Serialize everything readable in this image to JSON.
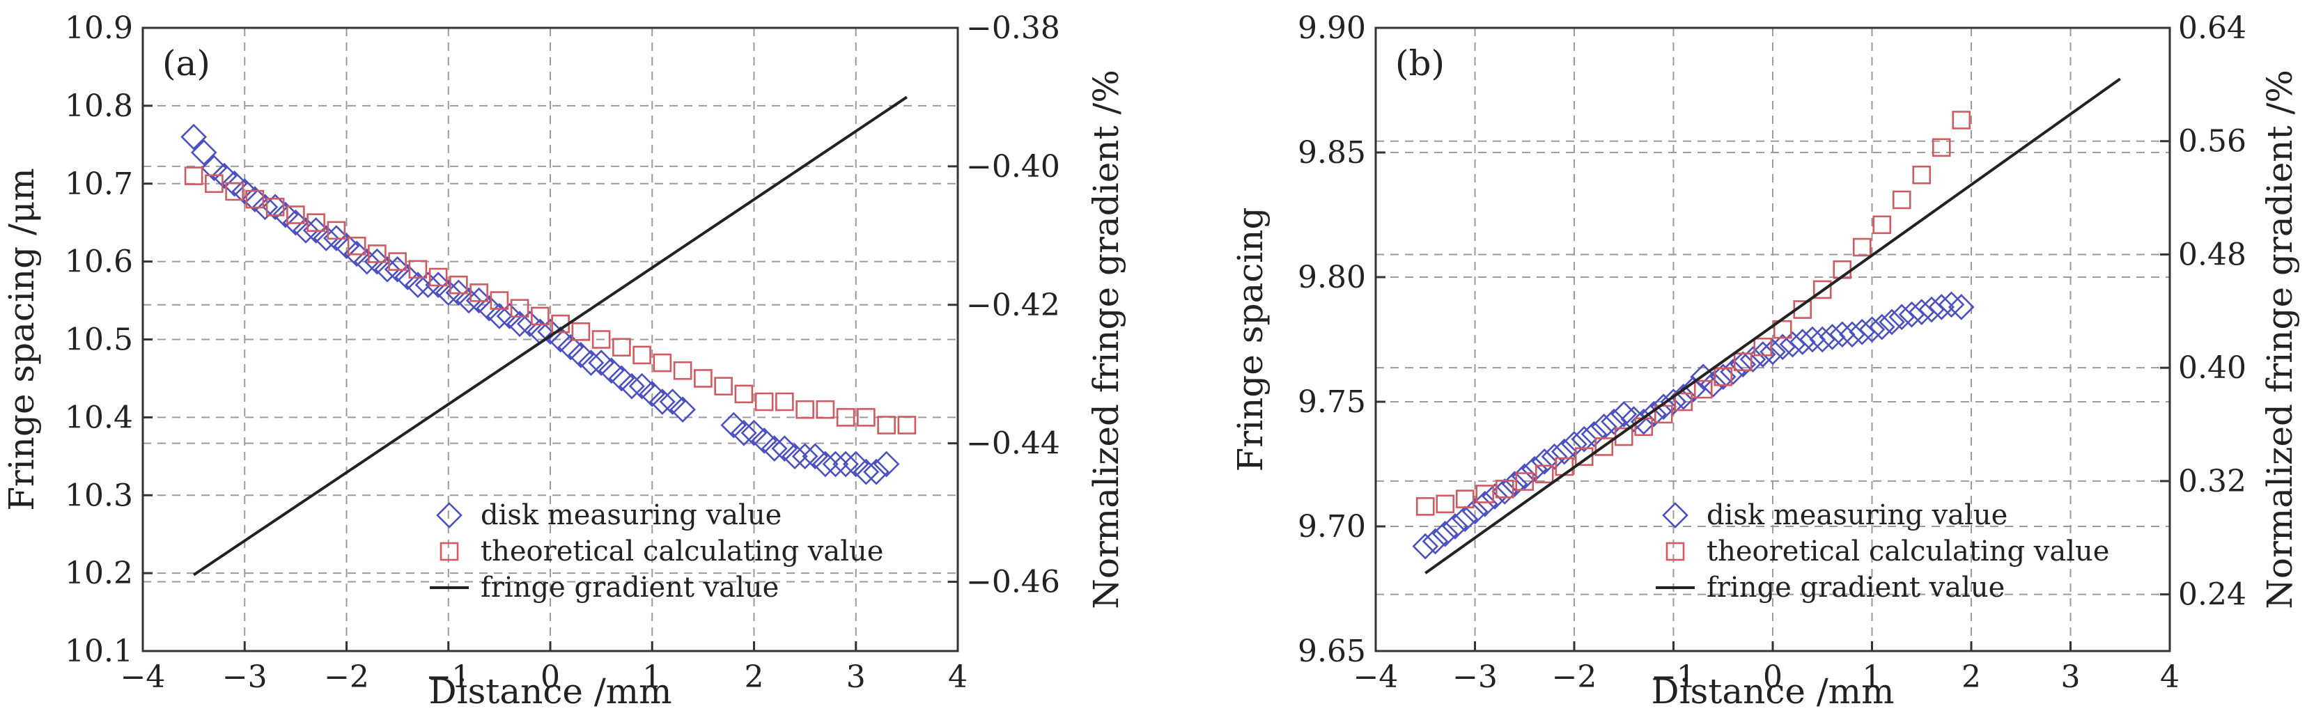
{
  "chart_data": [
    {
      "type": "scatter",
      "panel_label": "(a)",
      "xlabel": "Distance /mm",
      "ylabel": "Fringe spacing /μm",
      "y2label": "Normalized fringe gradient /%",
      "xlim": [
        -4,
        4
      ],
      "ylim": [
        10.1,
        10.9
      ],
      "y2lim": [
        -0.47,
        -0.38
      ],
      "xticks": [
        "−4",
        "−3",
        "−2",
        "−1",
        "0",
        "1",
        "2",
        "3",
        "4"
      ],
      "yticks": [
        "10.1",
        "10.2",
        "10.3",
        "10.4",
        "10.5",
        "10.6",
        "10.7",
        "10.8",
        "10.9"
      ],
      "y2ticks": [
        "−0.46",
        "−0.44",
        "−0.42",
        "−0.40",
        "−0.38"
      ],
      "grid": true,
      "legend_position": "bottom-right",
      "series": [
        {
          "name": "disk measuring value",
          "marker": "diamond",
          "color": "#4a50c0",
          "x": [
            -3.5,
            -3.4,
            -3.3,
            -3.2,
            -3.1,
            -3.0,
            -2.9,
            -2.8,
            -2.7,
            -2.6,
            -2.5,
            -2.4,
            -2.3,
            -2.2,
            -2.1,
            -2.0,
            -1.9,
            -1.8,
            -1.7,
            -1.6,
            -1.5,
            -1.4,
            -1.3,
            -1.2,
            -1.1,
            -1.0,
            -0.9,
            -0.8,
            -0.7,
            -0.6,
            -0.5,
            -0.4,
            -0.3,
            -0.2,
            -0.1,
            0.0,
            0.1,
            0.2,
            0.3,
            0.4,
            0.5,
            0.6,
            0.7,
            0.8,
            0.9,
            1.0,
            1.1,
            1.2,
            1.3,
            1.8,
            1.9,
            2.0,
            2.1,
            2.2,
            2.3,
            2.4,
            2.5,
            2.6,
            2.7,
            2.8,
            2.9,
            3.0,
            3.1,
            3.2,
            3.3
          ],
          "y": [
            10.76,
            10.74,
            10.72,
            10.71,
            10.7,
            10.69,
            10.68,
            10.67,
            10.67,
            10.66,
            10.65,
            10.64,
            10.64,
            10.63,
            10.63,
            10.62,
            10.61,
            10.6,
            10.6,
            10.59,
            10.59,
            10.58,
            10.57,
            10.57,
            10.57,
            10.56,
            10.56,
            10.55,
            10.55,
            10.54,
            10.53,
            10.53,
            10.52,
            10.52,
            10.51,
            10.51,
            10.5,
            10.49,
            10.48,
            10.47,
            10.47,
            10.46,
            10.45,
            10.44,
            10.44,
            10.43,
            10.42,
            10.42,
            10.41,
            10.39,
            10.38,
            10.38,
            10.37,
            10.36,
            10.36,
            10.35,
            10.35,
            10.35,
            10.34,
            10.34,
            10.34,
            10.34,
            10.33,
            10.33,
            10.34
          ]
        },
        {
          "name": "theoretical calculating value",
          "marker": "square",
          "color": "#d05a60",
          "x": [
            -3.5,
            -3.3,
            -3.1,
            -2.9,
            -2.7,
            -2.5,
            -2.3,
            -2.1,
            -1.9,
            -1.7,
            -1.5,
            -1.3,
            -1.1,
            -0.9,
            -0.7,
            -0.5,
            -0.3,
            -0.1,
            0.1,
            0.3,
            0.5,
            0.7,
            0.9,
            1.1,
            1.3,
            1.5,
            1.7,
            1.9,
            2.1,
            2.3,
            2.5,
            2.7,
            2.9,
            3.1,
            3.3,
            3.5
          ],
          "y": [
            10.71,
            10.7,
            10.69,
            10.68,
            10.67,
            10.66,
            10.65,
            10.64,
            10.62,
            10.61,
            10.6,
            10.59,
            10.58,
            10.57,
            10.56,
            10.55,
            10.54,
            10.53,
            10.52,
            10.51,
            10.5,
            10.49,
            10.48,
            10.47,
            10.46,
            10.45,
            10.44,
            10.43,
            10.42,
            10.42,
            10.41,
            10.41,
            10.4,
            10.4,
            10.39,
            10.39
          ]
        },
        {
          "name": "fringe gradient value",
          "marker": "line",
          "color": "#222222",
          "axis": "y2",
          "x": [
            -3.5,
            3.5
          ],
          "y": [
            -0.459,
            -0.39
          ]
        }
      ]
    },
    {
      "type": "scatter",
      "panel_label": "(b)",
      "xlabel": "Distance /mm",
      "ylabel": "Fringe spacing",
      "y2label": "Normalized fringe gradient /%",
      "xlim": [
        -4,
        4
      ],
      "ylim": [
        9.65,
        9.9
      ],
      "y2lim": [
        0.2,
        0.64
      ],
      "xticks": [
        "−4",
        "−3",
        "−2",
        "−1",
        "0",
        "1",
        "2",
        "3",
        "4"
      ],
      "yticks": [
        "9.65",
        "9.70",
        "9.75",
        "9.80",
        "9.85",
        "9.90"
      ],
      "y2ticks": [
        "0.24",
        "0.32",
        "0.40",
        "0.48",
        "0.56",
        "0.64"
      ],
      "grid": true,
      "legend_position": "bottom-right",
      "series": [
        {
          "name": "disk measuring value",
          "marker": "diamond",
          "color": "#4a50c0",
          "x": [
            -3.5,
            -3.4,
            -3.3,
            -3.2,
            -3.1,
            -3.0,
            -2.9,
            -2.8,
            -2.7,
            -2.6,
            -2.5,
            -2.4,
            -2.3,
            -2.2,
            -2.1,
            -2.0,
            -1.9,
            -1.8,
            -1.7,
            -1.6,
            -1.5,
            -1.4,
            -1.3,
            -1.2,
            -1.1,
            -1.0,
            -0.9,
            -0.8,
            -0.7,
            -0.6,
            -0.5,
            -0.4,
            -0.3,
            -0.2,
            -0.1,
            0.0,
            0.1,
            0.2,
            0.3,
            0.4,
            0.5,
            0.6,
            0.7,
            0.8,
            0.9,
            1.0,
            1.1,
            1.2,
            1.3,
            1.4,
            1.5,
            1.6,
            1.7,
            1.8,
            1.9
          ],
          "y": [
            9.692,
            9.694,
            9.697,
            9.7,
            9.703,
            9.706,
            9.709,
            9.712,
            9.714,
            9.717,
            9.72,
            9.723,
            9.726,
            9.728,
            9.73,
            9.733,
            9.735,
            9.737,
            9.74,
            9.742,
            9.745,
            9.743,
            9.742,
            9.745,
            9.748,
            9.75,
            9.752,
            9.755,
            9.76,
            9.757,
            9.76,
            9.762,
            9.765,
            9.767,
            9.769,
            9.77,
            9.772,
            9.773,
            9.774,
            9.775,
            9.775,
            9.776,
            9.777,
            9.777,
            9.778,
            9.779,
            9.78,
            9.782,
            9.784,
            9.785,
            9.786,
            9.787,
            9.788,
            9.789,
            9.788
          ]
        },
        {
          "name": "theoretical calculating value",
          "marker": "square",
          "color": "#d05a60",
          "x": [
            -3.5,
            -3.3,
            -3.1,
            -2.9,
            -2.7,
            -2.5,
            -2.3,
            -2.1,
            -1.9,
            -1.7,
            -1.5,
            -1.3,
            -1.1,
            -0.9,
            -0.7,
            -0.5,
            -0.3,
            -0.1,
            0.1,
            0.3,
            0.5,
            0.7,
            0.9,
            1.1,
            1.3,
            1.5,
            1.7,
            1.9
          ],
          "y": [
            9.708,
            9.709,
            9.711,
            9.713,
            9.715,
            9.718,
            9.721,
            9.724,
            9.728,
            9.732,
            9.736,
            9.74,
            9.745,
            9.75,
            9.755,
            9.76,
            9.766,
            9.772,
            9.779,
            9.787,
            9.795,
            9.803,
            9.812,
            9.821,
            9.831,
            9.841,
            9.852,
            9.863
          ]
        },
        {
          "name": "fringe gradient value",
          "marker": "line",
          "color": "#222222",
          "axis": "y2",
          "x": [
            -3.5,
            3.5
          ],
          "y": [
            0.255,
            0.604
          ]
        }
      ]
    }
  ]
}
